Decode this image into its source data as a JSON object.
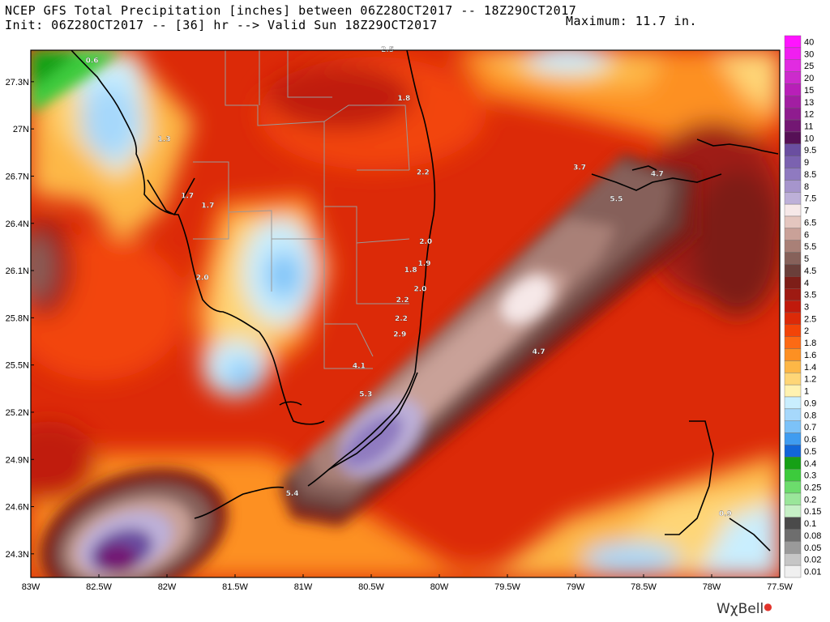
{
  "header": {
    "line1": "NCEP GFS Total Precipitation [inches] between 06Z28OCT2017 -- 18Z29OCT2017",
    "line2": "Init: 06Z28OCT2017 -- [36] hr --> Valid Sun 18Z29OCT2017",
    "maximum": "Maximum: 11.7 in."
  },
  "axes": {
    "lat_labels": [
      "27.3N",
      "27N",
      "26.7N",
      "26.4N",
      "26.1N",
      "25.8N",
      "25.5N",
      "25.2N",
      "24.9N",
      "24.6N",
      "24.3N"
    ],
    "lon_labels": [
      "83W",
      "82.5W",
      "82W",
      "81.5W",
      "81W",
      "80.5W",
      "80W",
      "79.5W",
      "79W",
      "78.5W",
      "78W",
      "77.5W"
    ]
  },
  "legend": {
    "values": [
      "40",
      "30",
      "25",
      "20",
      "15",
      "13",
      "12",
      "11",
      "10",
      "9.5",
      "9",
      "8.5",
      "8",
      "7.5",
      "7",
      "6.5",
      "6",
      "5.5",
      "5",
      "4.5",
      "4",
      "3.5",
      "3",
      "2.5",
      "2",
      "1.8",
      "1.6",
      "1.4",
      "1.2",
      "1",
      "0.9",
      "0.8",
      "0.7",
      "0.6",
      "0.5",
      "0.4",
      "0.3",
      "0.25",
      "0.2",
      "0.15",
      "0.1",
      "0.08",
      "0.05",
      "0.02",
      "0.01"
    ],
    "colors": [
      "#ff14ff",
      "#f01ef0",
      "#e12be1",
      "#cc2bcc",
      "#b81fb8",
      "#a21ea2",
      "#8f1c8f",
      "#731773",
      "#561056",
      "#6a4ea0",
      "#7b62b0",
      "#8f7ac0",
      "#a695cc",
      "#bdb0d8",
      "#f6e8e8",
      "#e4c6bf",
      "#c9a198",
      "#a98077",
      "#86615a",
      "#6a3f3a",
      "#7d1e18",
      "#9e1a12",
      "#c01a0c",
      "#dc2a08",
      "#f24408",
      "#fc6a14",
      "#fd9022",
      "#fdb746",
      "#fed677",
      "#fff2b0",
      "#c9eefe",
      "#a6d8fb",
      "#7cc2f8",
      "#3f9cf0",
      "#1266d8",
      "#16a016",
      "#3ccb3c",
      "#6cdc6c",
      "#9ae69a",
      "#c6f0c6",
      "#4a4a4a",
      "#6e6e6e",
      "#9a9a9a",
      "#c6c6c6",
      "#f0f0f0"
    ]
  },
  "map_labels": [
    {
      "text": "0.6",
      "lon": -82.55,
      "lat": 27.42
    },
    {
      "text": "2.5",
      "lon": -80.38,
      "lat": 27.49
    },
    {
      "text": "1.8",
      "lon": -80.26,
      "lat": 27.18
    },
    {
      "text": "1.3",
      "lon": -82.02,
      "lat": 26.92
    },
    {
      "text": "2.2",
      "lon": -80.12,
      "lat": 26.71
    },
    {
      "text": "3.7",
      "lon": -78.97,
      "lat": 26.74
    },
    {
      "text": "4.7",
      "lon": -78.4,
      "lat": 26.7
    },
    {
      "text": "1.7",
      "lon": -81.85,
      "lat": 26.56
    },
    {
      "text": "1.7",
      "lon": -81.7,
      "lat": 26.5
    },
    {
      "text": "5.5",
      "lon": -78.7,
      "lat": 26.54
    },
    {
      "text": "2.0",
      "lon": -80.1,
      "lat": 26.27
    },
    {
      "text": "1.9",
      "lon": -80.11,
      "lat": 26.13
    },
    {
      "text": "1.8",
      "lon": -80.21,
      "lat": 26.09
    },
    {
      "text": "2.0",
      "lon": -81.74,
      "lat": 26.04
    },
    {
      "text": "2.0",
      "lon": -80.14,
      "lat": 25.97
    },
    {
      "text": "2.2",
      "lon": -80.27,
      "lat": 25.9
    },
    {
      "text": "2.2",
      "lon": -80.28,
      "lat": 25.78
    },
    {
      "text": "2.9",
      "lon": -80.29,
      "lat": 25.68
    },
    {
      "text": "4.7",
      "lon": -79.27,
      "lat": 25.57
    },
    {
      "text": "4.1",
      "lon": -80.59,
      "lat": 25.48
    },
    {
      "text": "5.3",
      "lon": -80.54,
      "lat": 25.3
    },
    {
      "text": "5.4",
      "lon": -81.08,
      "lat": 24.67
    },
    {
      "text": "0.9",
      "lon": -77.9,
      "lat": 24.54
    }
  ],
  "brand": {
    "name": "WχBell",
    "mark": "●"
  }
}
